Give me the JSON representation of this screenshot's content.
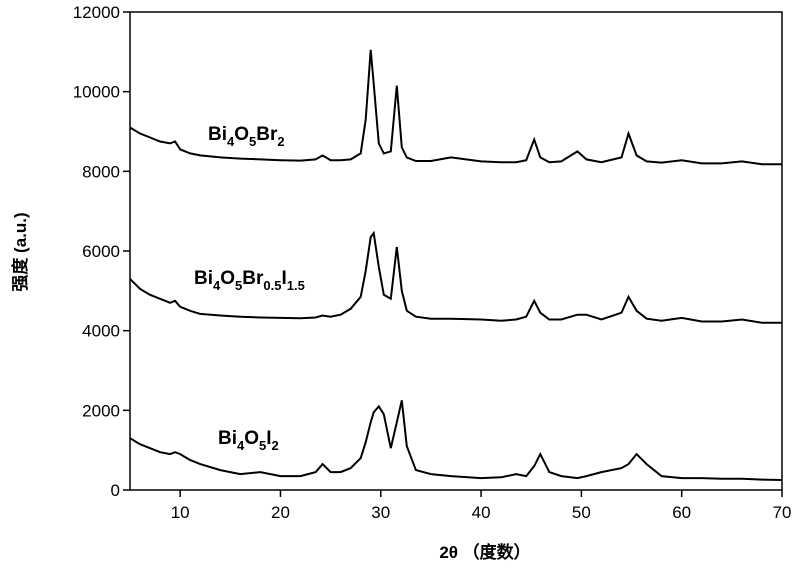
{
  "chart_data": {
    "type": "line",
    "x_label": "2θ （度数）",
    "y_label": "强度 (a.u.)",
    "xlim": [
      5,
      70
    ],
    "xticks": [
      10,
      20,
      30,
      40,
      50,
      60,
      70
    ],
    "ylim": [
      0,
      12000
    ],
    "yticks": [
      0,
      2000,
      4000,
      6000,
      8000,
      10000,
      12000
    ],
    "x": [
      5,
      6,
      7,
      8,
      9,
      9.5,
      10,
      11,
      12,
      14,
      16,
      18,
      20,
      22,
      23.5,
      24.2,
      25,
      26,
      27,
      28,
      28.5,
      29,
      29.3,
      29.8,
      30.3,
      31,
      31.6,
      32.1,
      32.6,
      33.5,
      35,
      37,
      40,
      42,
      43.5,
      44.5,
      45.3,
      45.9,
      46.8,
      48,
      49.6,
      50.5,
      52,
      54,
      54.7,
      55.5,
      56.5,
      58,
      60,
      62,
      64,
      66,
      68,
      70
    ],
    "series": [
      {
        "name": "Bi4O5Br2",
        "color": "#000000",
        "values": [
          9100,
          8950,
          8850,
          8750,
          8700,
          8750,
          8550,
          8450,
          8400,
          8350,
          8320,
          8300,
          8280,
          8270,
          8300,
          8400,
          8280,
          8280,
          8300,
          8450,
          9300,
          11050,
          10200,
          8700,
          8450,
          8500,
          10150,
          8600,
          8350,
          8260,
          8260,
          8350,
          8250,
          8230,
          8230,
          8280,
          8800,
          8350,
          8230,
          8250,
          8500,
          8300,
          8230,
          8350,
          8950,
          8400,
          8250,
          8220,
          8280,
          8200,
          8200,
          8250,
          8180,
          8180
        ]
      },
      {
        "name": "Bi4O5Br0.5I1.5",
        "color": "#000000",
        "values": [
          5300,
          5050,
          4900,
          4800,
          4700,
          4750,
          4600,
          4500,
          4420,
          4380,
          4350,
          4330,
          4320,
          4310,
          4330,
          4380,
          4350,
          4400,
          4550,
          4850,
          5500,
          6350,
          6450,
          5600,
          4900,
          4800,
          6100,
          5000,
          4500,
          4350,
          4300,
          4300,
          4280,
          4250,
          4280,
          4350,
          4750,
          4450,
          4280,
          4280,
          4400,
          4400,
          4280,
          4450,
          4850,
          4500,
          4300,
          4250,
          4320,
          4230,
          4230,
          4280,
          4200,
          4200
        ]
      },
      {
        "name": "Bi4O5I2",
        "color": "#000000",
        "values": [
          1300,
          1150,
          1050,
          950,
          900,
          950,
          900,
          750,
          650,
          500,
          400,
          450,
          350,
          350,
          450,
          650,
          450,
          450,
          550,
          800,
          1200,
          1700,
          1950,
          2100,
          1900,
          1050,
          1700,
          2250,
          1100,
          500,
          400,
          350,
          300,
          320,
          400,
          350,
          600,
          900,
          450,
          350,
          300,
          350,
          450,
          550,
          650,
          900,
          650,
          350,
          300,
          300,
          280,
          280,
          260,
          250
        ]
      }
    ]
  }
}
